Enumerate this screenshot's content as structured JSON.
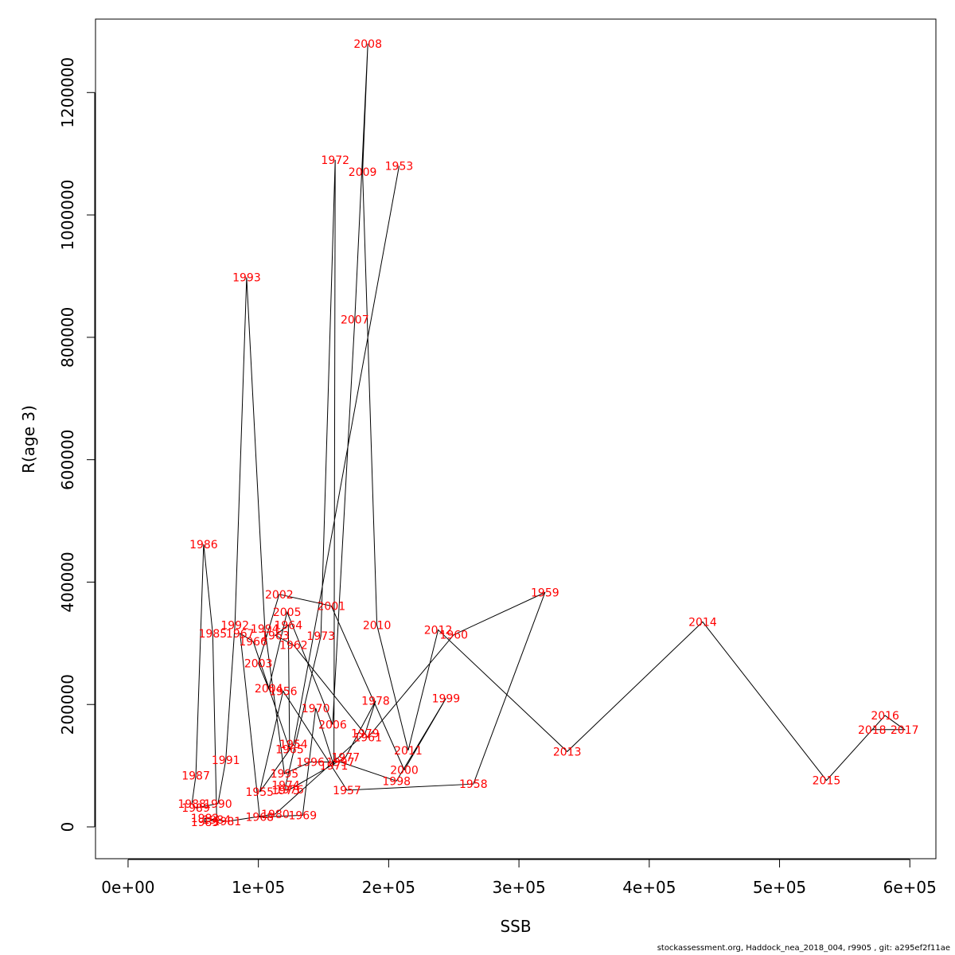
{
  "chart_data": {
    "type": "line",
    "title": "",
    "xlabel": "SSB",
    "ylabel": "R(age 3)",
    "xlim": [
      -25000,
      620000
    ],
    "ylim": [
      -52000,
      1320000
    ],
    "grid": false,
    "x_ticks": [
      0,
      100000,
      200000,
      300000,
      400000,
      500000,
      600000
    ],
    "x_tick_labels": [
      "0e+00",
      "1e+05",
      "2e+05",
      "3e+05",
      "4e+05",
      "5e+05",
      "6e+05"
    ],
    "y_ticks": [
      0,
      200000,
      400000,
      600000,
      800000,
      1000000,
      1200000
    ],
    "y_tick_labels": [
      "0",
      "200000",
      "400000",
      "600000",
      "800000",
      "1000000",
      "1200000"
    ],
    "line_color": "#000000",
    "label_color": "#ff0000",
    "points": [
      {
        "label": "1953",
        "x": 208000,
        "y": 1080000
      },
      {
        "label": "1954",
        "x": 127000,
        "y": 135000
      },
      {
        "label": "1955",
        "x": 101000,
        "y": 57000
      },
      {
        "label": "1956",
        "x": 119000,
        "y": 222000
      },
      {
        "label": "1957",
        "x": 168000,
        "y": 60000
      },
      {
        "label": "1958",
        "x": 265000,
        "y": 70000
      },
      {
        "label": "1959",
        "x": 320000,
        "y": 383000
      },
      {
        "label": "1960",
        "x": 250000,
        "y": 314000
      },
      {
        "label": "1961",
        "x": 184000,
        "y": 146000
      },
      {
        "label": "1962",
        "x": 127000,
        "y": 297000
      },
      {
        "label": "1963",
        "x": 113000,
        "y": 313000
      },
      {
        "label": "1964",
        "x": 123000,
        "y": 330000
      },
      {
        "label": "1965",
        "x": 124000,
        "y": 127000
      },
      {
        "label": "1966",
        "x": 96000,
        "y": 303000
      },
      {
        "label": "1967",
        "x": 86000,
        "y": 316000
      },
      {
        "label": "1968",
        "x": 101000,
        "y": 16000
      },
      {
        "label": "1969",
        "x": 134000,
        "y": 19000
      },
      {
        "label": "1970",
        "x": 144000,
        "y": 194000
      },
      {
        "label": "1971",
        "x": 158000,
        "y": 100000
      },
      {
        "label": "1972",
        "x": 159000,
        "y": 1090000
      },
      {
        "label": "1973",
        "x": 148000,
        "y": 312000
      },
      {
        "label": "1974",
        "x": 121000,
        "y": 68000
      },
      {
        "label": "1975",
        "x": 121000,
        "y": 60000
      },
      {
        "label": "1976",
        "x": 124000,
        "y": 61000
      },
      {
        "label": "1977",
        "x": 167000,
        "y": 114000
      },
      {
        "label": "1978",
        "x": 190000,
        "y": 206000
      },
      {
        "label": "1979",
        "x": 182000,
        "y": 153000
      },
      {
        "label": "1980",
        "x": 113000,
        "y": 21000
      },
      {
        "label": "1981",
        "x": 76000,
        "y": 9000
      },
      {
        "label": "1982",
        "x": 59000,
        "y": 14000
      },
      {
        "label": "1983",
        "x": 59000,
        "y": 8000
      },
      {
        "label": "1984",
        "x": 68000,
        "y": 12000
      },
      {
        "label": "1985",
        "x": 65000,
        "y": 316000
      },
      {
        "label": "1986",
        "x": 58000,
        "y": 462000
      },
      {
        "label": "1987",
        "x": 52000,
        "y": 84000
      },
      {
        "label": "1988",
        "x": 49000,
        "y": 38000
      },
      {
        "label": "1989",
        "x": 52000,
        "y": 31000
      },
      {
        "label": "1990",
        "x": 69000,
        "y": 38000
      },
      {
        "label": "1991",
        "x": 75000,
        "y": 109000
      },
      {
        "label": "1992",
        "x": 82000,
        "y": 330000
      },
      {
        "label": "1993",
        "x": 91000,
        "y": 898000
      },
      {
        "label": "1994",
        "x": 105000,
        "y": 324000
      },
      {
        "label": "1995",
        "x": 120000,
        "y": 87000
      },
      {
        "label": "1996",
        "x": 140000,
        "y": 106000
      },
      {
        "label": "1997",
        "x": 163000,
        "y": 106000
      },
      {
        "label": "1998",
        "x": 206000,
        "y": 75000
      },
      {
        "label": "1999",
        "x": 244000,
        "y": 210000
      },
      {
        "label": "2000",
        "x": 212000,
        "y": 93000
      },
      {
        "label": "2001",
        "x": 156000,
        "y": 361000
      },
      {
        "label": "2002",
        "x": 116000,
        "y": 380000
      },
      {
        "label": "2003",
        "x": 100000,
        "y": 267000
      },
      {
        "label": "2004",
        "x": 108000,
        "y": 226000
      },
      {
        "label": "2005",
        "x": 122000,
        "y": 351000
      },
      {
        "label": "2006",
        "x": 157000,
        "y": 167000
      },
      {
        "label": "2007",
        "x": 174000,
        "y": 829000
      },
      {
        "label": "2008",
        "x": 184000,
        "y": 1280000
      },
      {
        "label": "2009",
        "x": 180000,
        "y": 1070000
      },
      {
        "label": "2010",
        "x": 191000,
        "y": 330000
      },
      {
        "label": "2011",
        "x": 215000,
        "y": 125000
      },
      {
        "label": "2012",
        "x": 238000,
        "y": 322000
      },
      {
        "label": "2013",
        "x": 337000,
        "y": 123000
      },
      {
        "label": "2014",
        "x": 441000,
        "y": 335000
      },
      {
        "label": "2015",
        "x": 536000,
        "y": 76000
      },
      {
        "label": "2016",
        "x": 581000,
        "y": 182000
      },
      {
        "label": "2017",
        "x": 596000,
        "y": 159000
      },
      {
        "label": "2018",
        "x": 571000,
        "y": 159000
      }
    ]
  },
  "footer": "stockassessment.org, Haddock_nea_2018_004, r9905 , git: a295ef2f11ae"
}
